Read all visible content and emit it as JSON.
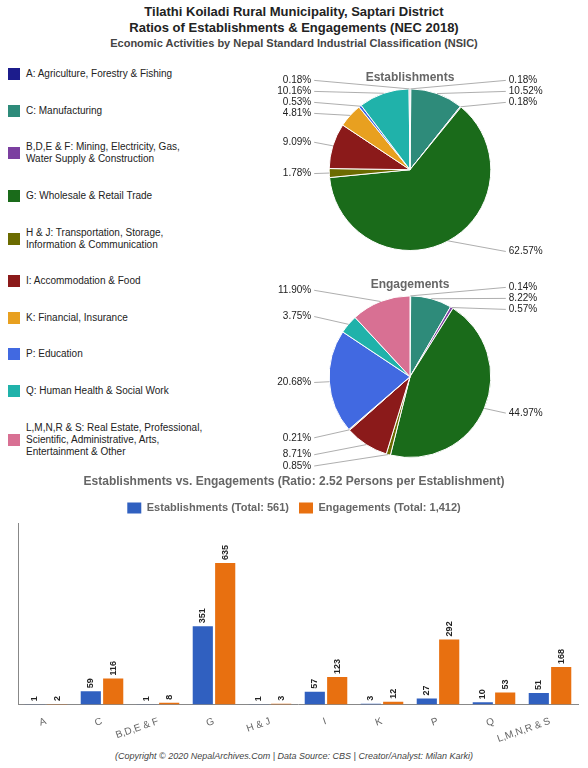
{
  "chart_data": [
    {
      "type": "pie",
      "title": "Tilathi Koiladi Rural Municipality, Saptari District\nRatios of Establishments & Engagements (NEC 2018)",
      "subtitle": "Economic Activities by Nepal Standard Industrial Classification (NSIC)",
      "categories": [
        "A: Agriculture, Forestry & Fishing",
        "C: Manufacturing",
        "B,D,E & F: Mining, Electricity, Gas,\nWater Supply & Construction",
        "G: Wholesale & Retail Trade",
        "H & J: Transportation, Storage,\nInformation & Communication",
        "I: Accommodation & Food",
        "K: Financial, Insurance",
        "P: Education",
        "Q: Human Health & Social Work",
        "L,M,N,R & S: Real Estate, Professional,\nScientific, Administrative, Arts,\nEntertainment & Other"
      ],
      "colors": [
        "#1C1C8C",
        "#2E8B7A",
        "#7B3FA0",
        "#1A6B1A",
        "#6B6B00",
        "#8B1A1A",
        "#E8A020",
        "#4169E1",
        "#20B2AA",
        "#D87093"
      ],
      "series": [
        {
          "name": "Establishments",
          "values": [
            0.18,
            10.52,
            0.18,
            62.57,
            1.78,
            9.09,
            4.81,
            0.53,
            10.16,
            0.18
          ],
          "value_labels": [
            "0.18%",
            "10.52%",
            "0.18%",
            "62.57%",
            "1.78%",
            "9.09%",
            "4.81%",
            "0.53%",
            "10.16%",
            "0.18%"
          ]
        }
      ],
      "data_labels": true,
      "legend": "left"
    },
    {
      "type": "pie",
      "categories": [
        "A: Agriculture, Forestry & Fishing",
        "C: Manufacturing",
        "B,D,E & F: Mining, Electricity, Gas,\nWater Supply & Construction",
        "G: Wholesale & Retail Trade",
        "H & J: Transportation, Storage,\nInformation & Communication",
        "I: Accommodation & Food",
        "K: Financial, Insurance",
        "P: Education",
        "Q: Human Health & Social Work",
        "L,M,N,R & S: Real Estate, Professional,\nScientific, Administrative, Arts,\nEntertainment & Other"
      ],
      "colors": [
        "#1C1C8C",
        "#2E8B7A",
        "#7B3FA0",
        "#1A6B1A",
        "#6B6B00",
        "#8B1A1A",
        "#E8A020",
        "#4169E1",
        "#20B2AA",
        "#D87093"
      ],
      "series": [
        {
          "name": "Engagements",
          "values": [
            0.14,
            8.22,
            0.57,
            44.97,
            0.85,
            8.71,
            0.21,
            20.68,
            3.75,
            11.9
          ],
          "value_labels": [
            "0.14%",
            "8.22%",
            "0.57%",
            "44.97%",
            "0.85%",
            "8.71%",
            "0.21%",
            "20.68%",
            "3.75%",
            "11.90%"
          ]
        }
      ],
      "data_labels": true,
      "legend": "left"
    },
    {
      "type": "bar",
      "title": "Establishments vs. Engagements (Ratio: 2.52 Persons per Establishment)",
      "categories": [
        "A",
        "C",
        "B,D,E & F",
        "G",
        "H & J",
        "I",
        "K",
        "P",
        "Q",
        "L,M,N,R & S"
      ],
      "series": [
        {
          "name": "Establishments (Total: 561)",
          "color": "#3060C0",
          "values": [
            1,
            59,
            1,
            351,
            1,
            57,
            3,
            27,
            10,
            51
          ]
        },
        {
          "name": "Engagements (Total: 1,412)",
          "color": "#E87010",
          "values": [
            2,
            116,
            8,
            635,
            3,
            123,
            12,
            292,
            53,
            168
          ]
        }
      ],
      "ylim": [
        0,
        812.8
      ],
      "data_labels": true,
      "tick_labels": "x",
      "grid": false,
      "legend": "top",
      "annotations": [
        "(Copyright © 2020 NepalArchives.Com | Data Source: CBS | Creator/Analyst: Milan Karki)"
      ]
    }
  ]
}
